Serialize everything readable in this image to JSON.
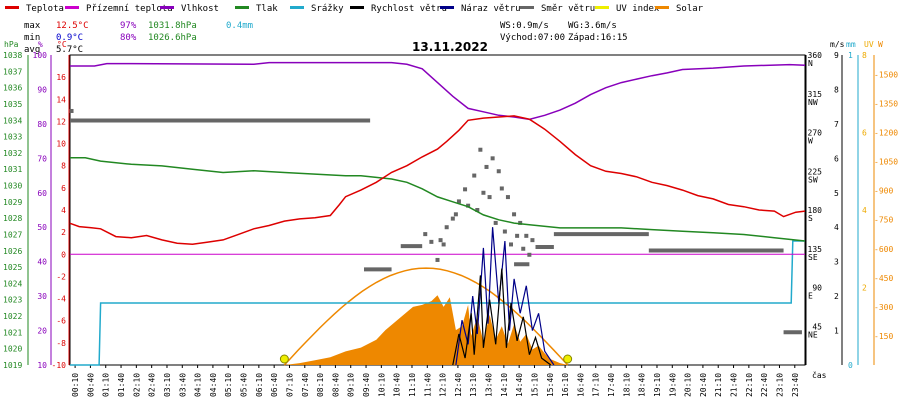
{
  "chart_data": {
    "type": "line",
    "title": "13.11.2022",
    "legend": [
      {
        "label": "Teplota",
        "color": "#dd0000"
      },
      {
        "label": "Přízemní teplota",
        "color": "#cc00cc"
      },
      {
        "label": "Vlhkost",
        "color": "#8800bb"
      },
      {
        "label": "Tlak",
        "color": "#228822"
      },
      {
        "label": "Srážky",
        "color": "#22aacc"
      },
      {
        "label": "Rychlost větru",
        "color": "#000000"
      },
      {
        "label": "Náraz větru",
        "color": "#000088"
      },
      {
        "label": "Směr větru",
        "color": "#666666"
      },
      {
        "label": "UV index",
        "color": "#eeee00"
      },
      {
        "label": "Solar",
        "color": "#ee8800"
      }
    ],
    "stats": {
      "max_label": "max",
      "max_temp": "12.5°C",
      "max_hum": "97%",
      "max_press": "1031.8hPa",
      "rain": "0.4mm",
      "min_label": "min",
      "min_temp": "0.9°C",
      "min_hum": "80%",
      "min_press": "1026.6hPa",
      "avg_label": "avg",
      "avg_temp": "5.7°C"
    },
    "wind_info": {
      "ws": "WS:0.9m/s",
      "wg": "WG:3.6m/s",
      "sunrise": "Východ:07:00",
      "sunset": "Západ:16:15"
    },
    "axes": {
      "hpa": {
        "title": "hPa",
        "color": "#228822",
        "ticks": [
          "1038",
          "1037",
          "1036",
          "1035",
          "1034",
          "1033",
          "1032",
          "1031",
          "1030",
          "1029",
          "1028",
          "1027",
          "1026",
          "1025",
          "1024",
          "1023",
          "1022",
          "1021",
          "1020",
          "1019"
        ],
        "range": [
          1019,
          1038
        ]
      },
      "pct": {
        "title": "%",
        "color": "#8800bb",
        "ticks": [
          "100",
          "90",
          "80",
          "70",
          "60",
          "50",
          "40",
          "30",
          "20",
          "10"
        ],
        "range": [
          10,
          100
        ]
      },
      "degc": {
        "title": "°C",
        "color": "#dd0000",
        "ticks": [
          "16",
          "14",
          "12",
          "10",
          "8",
          "6",
          "4",
          "2",
          "0",
          "-2",
          "-4",
          "-6",
          "-8",
          "-10"
        ],
        "range": [
          -10,
          18
        ]
      },
      "dir": {
        "ticks": [
          {
            "v": 360,
            "t": "360",
            "c": "N"
          },
          {
            "v": 315,
            "t": "315",
            "c": "NW"
          },
          {
            "v": 270,
            "t": "270",
            "c": "W"
          },
          {
            "v": 225,
            "t": "225",
            "c": "SW"
          },
          {
            "v": 180,
            "t": "180",
            "c": "S"
          },
          {
            "v": 135,
            "t": "135",
            "c": "SE"
          },
          {
            "v": 90,
            "t": "90",
            "c": "E"
          },
          {
            "v": 45,
            "t": "45",
            "c": "NE"
          }
        ],
        "range": [
          0,
          360
        ]
      },
      "ms": {
        "title": "m/s",
        "ticks": [
          "9",
          "8",
          "7",
          "6",
          "5",
          "4",
          "3",
          "2",
          "1"
        ],
        "range": [
          0,
          9
        ]
      },
      "mm": {
        "title": "mm",
        "color": "#22aacc",
        "ticks": [
          "1",
          "0"
        ],
        "range": [
          0,
          1
        ]
      },
      "uv": {
        "title": "UV",
        "color": "#eeaa00",
        "ticks": [
          "8",
          "6",
          "4",
          "2"
        ],
        "range": [
          0,
          8
        ]
      },
      "wm2": {
        "title": "W",
        "color": "#ee8800",
        "ticks": [
          "1500",
          "1350",
          "1200",
          "1050",
          "900",
          "750",
          "600",
          "450",
          "300",
          "150"
        ],
        "range": [
          0,
          1600
        ]
      },
      "x_labels": [
        "00:10",
        "00:40",
        "01:10",
        "01:40",
        "02:10",
        "02:40",
        "03:10",
        "03:40",
        "04:10",
        "04:40",
        "05:10",
        "05:40",
        "06:10",
        "06:40",
        "07:10",
        "07:40",
        "08:10",
        "08:40",
        "09:10",
        "09:40",
        "10:10",
        "10:40",
        "11:10",
        "11:40",
        "12:10",
        "12:40",
        "13:10",
        "13:40",
        "14:10",
        "14:40",
        "15:10",
        "15:40",
        "16:10",
        "16:40",
        "17:10",
        "17:40",
        "18:10",
        "18:40",
        "19:10",
        "19:40",
        "20:10",
        "20:40",
        "21:10",
        "21:40",
        "22:10",
        "22:40",
        "23:10",
        "23:40"
      ],
      "x_title": "čas"
    },
    "series": {
      "temperature": [
        [
          0,
          2.8
        ],
        [
          0.3,
          2.5
        ],
        [
          0.7,
          2.4
        ],
        [
          1,
          2.3
        ],
        [
          1.5,
          1.6
        ],
        [
          2,
          1.5
        ],
        [
          2.5,
          1.7
        ],
        [
          3,
          1.3
        ],
        [
          3.5,
          1.0
        ],
        [
          4,
          0.9
        ],
        [
          4.5,
          1.1
        ],
        [
          5,
          1.3
        ],
        [
          5.5,
          1.8
        ],
        [
          6,
          2.3
        ],
        [
          6.5,
          2.6
        ],
        [
          7,
          3.0
        ],
        [
          7.5,
          3.2
        ],
        [
          8,
          3.3
        ],
        [
          8.5,
          3.5
        ],
        [
          8.8,
          4.5
        ],
        [
          9,
          5.2
        ],
        [
          9.5,
          5.8
        ],
        [
          10,
          6.5
        ],
        [
          10.5,
          7.4
        ],
        [
          11,
          8.0
        ],
        [
          11.5,
          8.8
        ],
        [
          12,
          9.5
        ],
        [
          12.3,
          10.2
        ],
        [
          12.7,
          11.2
        ],
        [
          13,
          12.1
        ],
        [
          13.5,
          12.3
        ],
        [
          14,
          12.4
        ],
        [
          14.5,
          12.5
        ],
        [
          15,
          12.2
        ],
        [
          15.5,
          11.3
        ],
        [
          16,
          10.2
        ],
        [
          16.5,
          9.0
        ],
        [
          17,
          8.0
        ],
        [
          17.5,
          7.5
        ],
        [
          18,
          7.3
        ],
        [
          18.5,
          7.0
        ],
        [
          19,
          6.5
        ],
        [
          19.5,
          6.2
        ],
        [
          20,
          5.8
        ],
        [
          20.5,
          5.3
        ],
        [
          21,
          5.0
        ],
        [
          21.5,
          4.5
        ],
        [
          22,
          4.3
        ],
        [
          22.5,
          4.0
        ],
        [
          23,
          3.9
        ],
        [
          23.3,
          3.4
        ],
        [
          23.7,
          3.8
        ],
        [
          24,
          3.9
        ]
      ],
      "humidity": [
        [
          0,
          96.8
        ],
        [
          0.8,
          96.8
        ],
        [
          1.2,
          97.5
        ],
        [
          2,
          97.5
        ],
        [
          6,
          97.3
        ],
        [
          6.5,
          97.8
        ],
        [
          9,
          97.8
        ],
        [
          10.5,
          97.8
        ],
        [
          11,
          97.3
        ],
        [
          11.5,
          96
        ],
        [
          12,
          92
        ],
        [
          12.5,
          88
        ],
        [
          13,
          84.5
        ],
        [
          13.5,
          83.5
        ],
        [
          14,
          82.5
        ],
        [
          14.5,
          82
        ],
        [
          15,
          81.3
        ],
        [
          15.5,
          82.5
        ],
        [
          16,
          84
        ],
        [
          16.5,
          86
        ],
        [
          17,
          88.5
        ],
        [
          17.5,
          90.5
        ],
        [
          18,
          92
        ],
        [
          18.5,
          93
        ],
        [
          19,
          94
        ],
        [
          19.5,
          94.8
        ],
        [
          20,
          95.8
        ],
        [
          21,
          96.2
        ],
        [
          22,
          96.8
        ],
        [
          23.5,
          97.2
        ],
        [
          24,
          97
        ]
      ],
      "pressure": [
        [
          0,
          1031.7
        ],
        [
          0.5,
          1031.7
        ],
        [
          1,
          1031.5
        ],
        [
          2,
          1031.3
        ],
        [
          3,
          1031.2
        ],
        [
          4,
          1031
        ],
        [
          5,
          1030.8
        ],
        [
          6,
          1030.9
        ],
        [
          7,
          1030.8
        ],
        [
          8,
          1030.7
        ],
        [
          9,
          1030.6
        ],
        [
          9.5,
          1030.6
        ],
        [
          10,
          1030.5
        ],
        [
          10.5,
          1030.4
        ],
        [
          11,
          1030.2
        ],
        [
          11.5,
          1029.8
        ],
        [
          12,
          1029.3
        ],
        [
          12.5,
          1029
        ],
        [
          13,
          1028.7
        ],
        [
          13.5,
          1028.2
        ],
        [
          14,
          1027.9
        ],
        [
          14.5,
          1027.7
        ],
        [
          15,
          1027.6
        ],
        [
          16,
          1027.4
        ],
        [
          17,
          1027.4
        ],
        [
          18,
          1027.4
        ],
        [
          19,
          1027.3
        ],
        [
          20,
          1027.2
        ],
        [
          21,
          1027.1
        ],
        [
          22,
          1027
        ],
        [
          23,
          1026.8
        ],
        [
          23.5,
          1026.7
        ],
        [
          24,
          1026.6
        ]
      ],
      "rain": [
        [
          0,
          0
        ],
        [
          0.95,
          0
        ],
        [
          1,
          0.2
        ],
        [
          23.55,
          0.2
        ],
        [
          23.6,
          0.4
        ],
        [
          24,
          0.4
        ]
      ],
      "wind_speed": [
        [
          12.5,
          0
        ],
        [
          12.7,
          0.9
        ],
        [
          12.9,
          0.2
        ],
        [
          13.1,
          1.5
        ],
        [
          13.2,
          0.3
        ],
        [
          13.4,
          2.6
        ],
        [
          13.5,
          0.5
        ],
        [
          13.7,
          1.9
        ],
        [
          13.9,
          0.6
        ],
        [
          14.1,
          2.8
        ],
        [
          14.25,
          0.5
        ],
        [
          14.4,
          1.8
        ],
        [
          14.6,
          0.7
        ],
        [
          14.8,
          1.4
        ],
        [
          15,
          0.3
        ],
        [
          15.2,
          0.8
        ],
        [
          15.4,
          0.2
        ],
        [
          15.7,
          0
        ]
      ],
      "wind_gust": [
        [
          12.6,
          0
        ],
        [
          12.8,
          1.3
        ],
        [
          13,
          0.6
        ],
        [
          13.15,
          2.0
        ],
        [
          13.3,
          0.9
        ],
        [
          13.5,
          3.4
        ],
        [
          13.65,
          1.2
        ],
        [
          13.8,
          4.0
        ],
        [
          14,
          1.8
        ],
        [
          14.2,
          3.6
        ],
        [
          14.35,
          1.0
        ],
        [
          14.5,
          2.5
        ],
        [
          14.7,
          1.5
        ],
        [
          14.9,
          2.3
        ],
        [
          15.1,
          1.0
        ],
        [
          15.3,
          1.5
        ],
        [
          15.5,
          0.4
        ],
        [
          15.8,
          0
        ]
      ],
      "wind_dir_segments": [
        [
          0,
          9.8,
          284
        ],
        [
          9.6,
          10.5,
          111
        ],
        [
          10.8,
          11.5,
          138
        ],
        [
          14.5,
          15.0,
          117
        ],
        [
          15.2,
          15.8,
          137
        ],
        [
          15.8,
          18.9,
          152
        ],
        [
          18.9,
          23.3,
          133
        ],
        [
          23.3,
          23.9,
          38
        ]
      ],
      "wind_dir_points": [
        [
          0.05,
          295
        ],
        [
          11.6,
          152
        ],
        [
          11.8,
          143
        ],
        [
          12.0,
          122
        ],
        [
          12.1,
          145
        ],
        [
          12.2,
          140
        ],
        [
          12.3,
          160
        ],
        [
          12.5,
          170
        ],
        [
          12.6,
          175
        ],
        [
          12.7,
          190
        ],
        [
          12.9,
          204
        ],
        [
          13.0,
          185
        ],
        [
          13.2,
          220
        ],
        [
          13.3,
          180
        ],
        [
          13.4,
          250
        ],
        [
          13.5,
          200
        ],
        [
          13.6,
          230
        ],
        [
          13.7,
          195
        ],
        [
          13.8,
          240
        ],
        [
          13.9,
          165
        ],
        [
          14.0,
          225
        ],
        [
          14.1,
          205
        ],
        [
          14.2,
          155
        ],
        [
          14.3,
          195
        ],
        [
          14.4,
          140
        ],
        [
          14.5,
          175
        ],
        [
          14.6,
          150
        ],
        [
          14.7,
          165
        ],
        [
          14.8,
          135
        ],
        [
          14.9,
          150
        ],
        [
          15.0,
          128
        ],
        [
          15.1,
          145
        ]
      ],
      "solar": [
        [
          7.0,
          0
        ],
        [
          7.5,
          10
        ],
        [
          8,
          25
        ],
        [
          8.5,
          40
        ],
        [
          9,
          70
        ],
        [
          9.5,
          90
        ],
        [
          10,
          130
        ],
        [
          10.3,
          180
        ],
        [
          10.6,
          220
        ],
        [
          10.9,
          260
        ],
        [
          11.2,
          300
        ],
        [
          11.5,
          310
        ],
        [
          11.8,
          330
        ],
        [
          12,
          360
        ],
        [
          12.2,
          300
        ],
        [
          12.4,
          350
        ],
        [
          12.6,
          180
        ],
        [
          12.8,
          200
        ],
        [
          13.0,
          310
        ],
        [
          13.1,
          150
        ],
        [
          13.3,
          250
        ],
        [
          13.5,
          120
        ],
        [
          13.7,
          260
        ],
        [
          13.9,
          130
        ],
        [
          14.1,
          200
        ],
        [
          14.3,
          110
        ],
        [
          14.5,
          210
        ],
        [
          14.7,
          120
        ],
        [
          14.9,
          160
        ],
        [
          15.1,
          80
        ],
        [
          15.3,
          100
        ],
        [
          15.5,
          60
        ],
        [
          15.7,
          30
        ],
        [
          16.0,
          10
        ],
        [
          16.25,
          0
        ]
      ],
      "solar_theory": {
        "start": 7.0,
        "end": 16.25,
        "peak": 500
      },
      "uv": [
        [
          7.0,
          0
        ],
        [
          16.25,
          0
        ]
      ],
      "ground_temp": [
        [
          0,
          0
        ],
        [
          24,
          0
        ]
      ]
    }
  }
}
